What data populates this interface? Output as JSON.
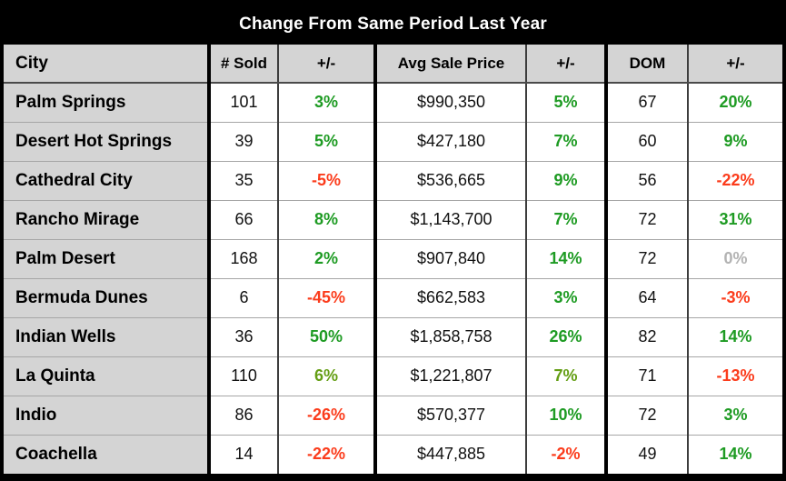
{
  "title": "Change From Same Period Last Year",
  "columns": [
    "City",
    "# Sold",
    "+/-",
    "Avg Sale Price",
    "+/-",
    "DOM",
    "+/-"
  ],
  "colors": {
    "green": "#1e9b23",
    "olive": "#649e14",
    "red": "#fb3c1c",
    "neutral": "#b3b3b3",
    "header_bg": "#d4d4d4",
    "title_bg": "#000000",
    "group_border": "#000000",
    "inner_border": "#3d3d3d",
    "row_line": "#a6a6a6"
  },
  "rows": [
    {
      "city": "Palm Springs",
      "sold": "101",
      "sold_chg": {
        "text": "3%",
        "color": "green"
      },
      "price": "$990,350",
      "price_chg": {
        "text": "5%",
        "color": "green"
      },
      "dom": "67",
      "dom_chg": {
        "text": "20%",
        "color": "green"
      }
    },
    {
      "city": "Desert Hot Springs",
      "sold": "39",
      "sold_chg": {
        "text": "5%",
        "color": "green"
      },
      "price": "$427,180",
      "price_chg": {
        "text": "7%",
        "color": "green"
      },
      "dom": "60",
      "dom_chg": {
        "text": "9%",
        "color": "green"
      }
    },
    {
      "city": "Cathedral City",
      "sold": "35",
      "sold_chg": {
        "text": "-5%",
        "color": "red"
      },
      "price": "$536,665",
      "price_chg": {
        "text": "9%",
        "color": "green"
      },
      "dom": "56",
      "dom_chg": {
        "text": "-22%",
        "color": "red"
      }
    },
    {
      "city": "Rancho Mirage",
      "sold": "66",
      "sold_chg": {
        "text": "8%",
        "color": "green"
      },
      "price": "$1,143,700",
      "price_chg": {
        "text": "7%",
        "color": "green"
      },
      "dom": "72",
      "dom_chg": {
        "text": "31%",
        "color": "green"
      }
    },
    {
      "city": "Palm Desert",
      "sold": "168",
      "sold_chg": {
        "text": "2%",
        "color": "green"
      },
      "price": "$907,840",
      "price_chg": {
        "text": "14%",
        "color": "green"
      },
      "dom": "72",
      "dom_chg": {
        "text": "0%",
        "color": "neutral"
      }
    },
    {
      "city": "Bermuda Dunes",
      "sold": "6",
      "sold_chg": {
        "text": "-45%",
        "color": "red"
      },
      "price": "$662,583",
      "price_chg": {
        "text": "3%",
        "color": "green"
      },
      "dom": "64",
      "dom_chg": {
        "text": "-3%",
        "color": "red"
      }
    },
    {
      "city": "Indian Wells",
      "sold": "36",
      "sold_chg": {
        "text": "50%",
        "color": "green"
      },
      "price": "$1,858,758",
      "price_chg": {
        "text": "26%",
        "color": "green"
      },
      "dom": "82",
      "dom_chg": {
        "text": "14%",
        "color": "green"
      }
    },
    {
      "city": "La Quinta",
      "sold": "110",
      "sold_chg": {
        "text": "6%",
        "color": "olive"
      },
      "price": "$1,221,807",
      "price_chg": {
        "text": "7%",
        "color": "olive"
      },
      "dom": "71",
      "dom_chg": {
        "text": "-13%",
        "color": "red"
      }
    },
    {
      "city": "Indio",
      "sold": "86",
      "sold_chg": {
        "text": "-26%",
        "color": "red"
      },
      "price": "$570,377",
      "price_chg": {
        "text": "10%",
        "color": "green"
      },
      "dom": "72",
      "dom_chg": {
        "text": "3%",
        "color": "green"
      }
    },
    {
      "city": "Coachella",
      "sold": "14",
      "sold_chg": {
        "text": "-22%",
        "color": "red"
      },
      "price": "$447,885",
      "price_chg": {
        "text": "-2%",
        "color": "red"
      },
      "dom": "49",
      "dom_chg": {
        "text": "14%",
        "color": "green"
      }
    }
  ],
  "chart_data": {
    "type": "table",
    "title": "Change From Same Period Last Year",
    "columns": [
      "City",
      "# Sold",
      "+/-",
      "Avg Sale Price",
      "+/-",
      "DOM",
      "+/-"
    ],
    "rows": [
      [
        "Palm Springs",
        "101",
        "3%",
        "$990,350",
        "5%",
        "67",
        "20%"
      ],
      [
        "Desert Hot Springs",
        "39",
        "5%",
        "$427,180",
        "7%",
        "60",
        "9%"
      ],
      [
        "Cathedral City",
        "35",
        "-5%",
        "$536,665",
        "9%",
        "56",
        "-22%"
      ],
      [
        "Rancho Mirage",
        "66",
        "8%",
        "$1,143,700",
        "7%",
        "72",
        "31%"
      ],
      [
        "Palm Desert",
        "168",
        "2%",
        "$907,840",
        "14%",
        "72",
        "0%"
      ],
      [
        "Bermuda Dunes",
        "6",
        "-45%",
        "$662,583",
        "3%",
        "64",
        "-3%"
      ],
      [
        "Indian Wells",
        "36",
        "50%",
        "$1,858,758",
        "26%",
        "82",
        "14%"
      ],
      [
        "La Quinta",
        "110",
        "6%",
        "$1,221,807",
        "7%",
        "71",
        "-13%"
      ],
      [
        "Indio",
        "86",
        "-26%",
        "$570,377",
        "10%",
        "72",
        "3%"
      ],
      [
        "Coachella",
        "14",
        "-22%",
        "$447,885",
        "-2%",
        "49",
        "14%"
      ]
    ]
  }
}
